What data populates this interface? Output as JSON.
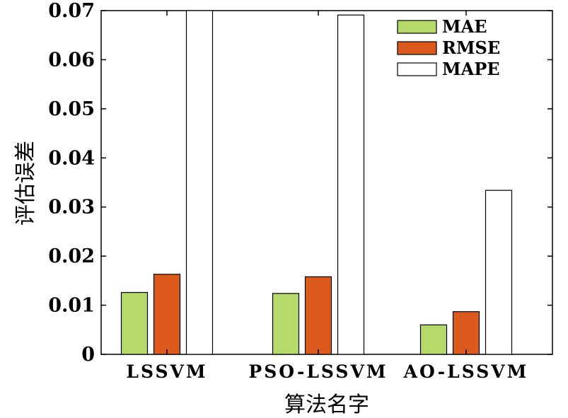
{
  "chart_data": {
    "type": "bar",
    "title": "",
    "xlabel": "算法名字",
    "ylabel": "评估误差",
    "categories": [
      "LSSVM",
      "PSO-LSSVM",
      "AO-LSSVM"
    ],
    "series": [
      {
        "name": "MAE",
        "color": "#b5d96a",
        "values": [
          0.0126,
          0.0124,
          0.006
        ]
      },
      {
        "name": "RMSE",
        "color": "#dd5a1e",
        "values": [
          0.0163,
          0.0158,
          0.0087
        ]
      },
      {
        "name": "MAPE",
        "color": "#ffffff",
        "values": [
          0.07,
          0.0691,
          0.0334
        ]
      }
    ],
    "ylim": [
      0,
      0.07
    ],
    "yticks": [
      0,
      0.01,
      0.02,
      0.03,
      0.04,
      0.05,
      0.06,
      0.07
    ],
    "ytick_labels": [
      "0",
      "0.01",
      "0.02",
      "0.03",
      "0.04",
      "0.05",
      "0.06",
      "0.07"
    ],
    "grid": false,
    "legend_position": "top-right"
  }
}
